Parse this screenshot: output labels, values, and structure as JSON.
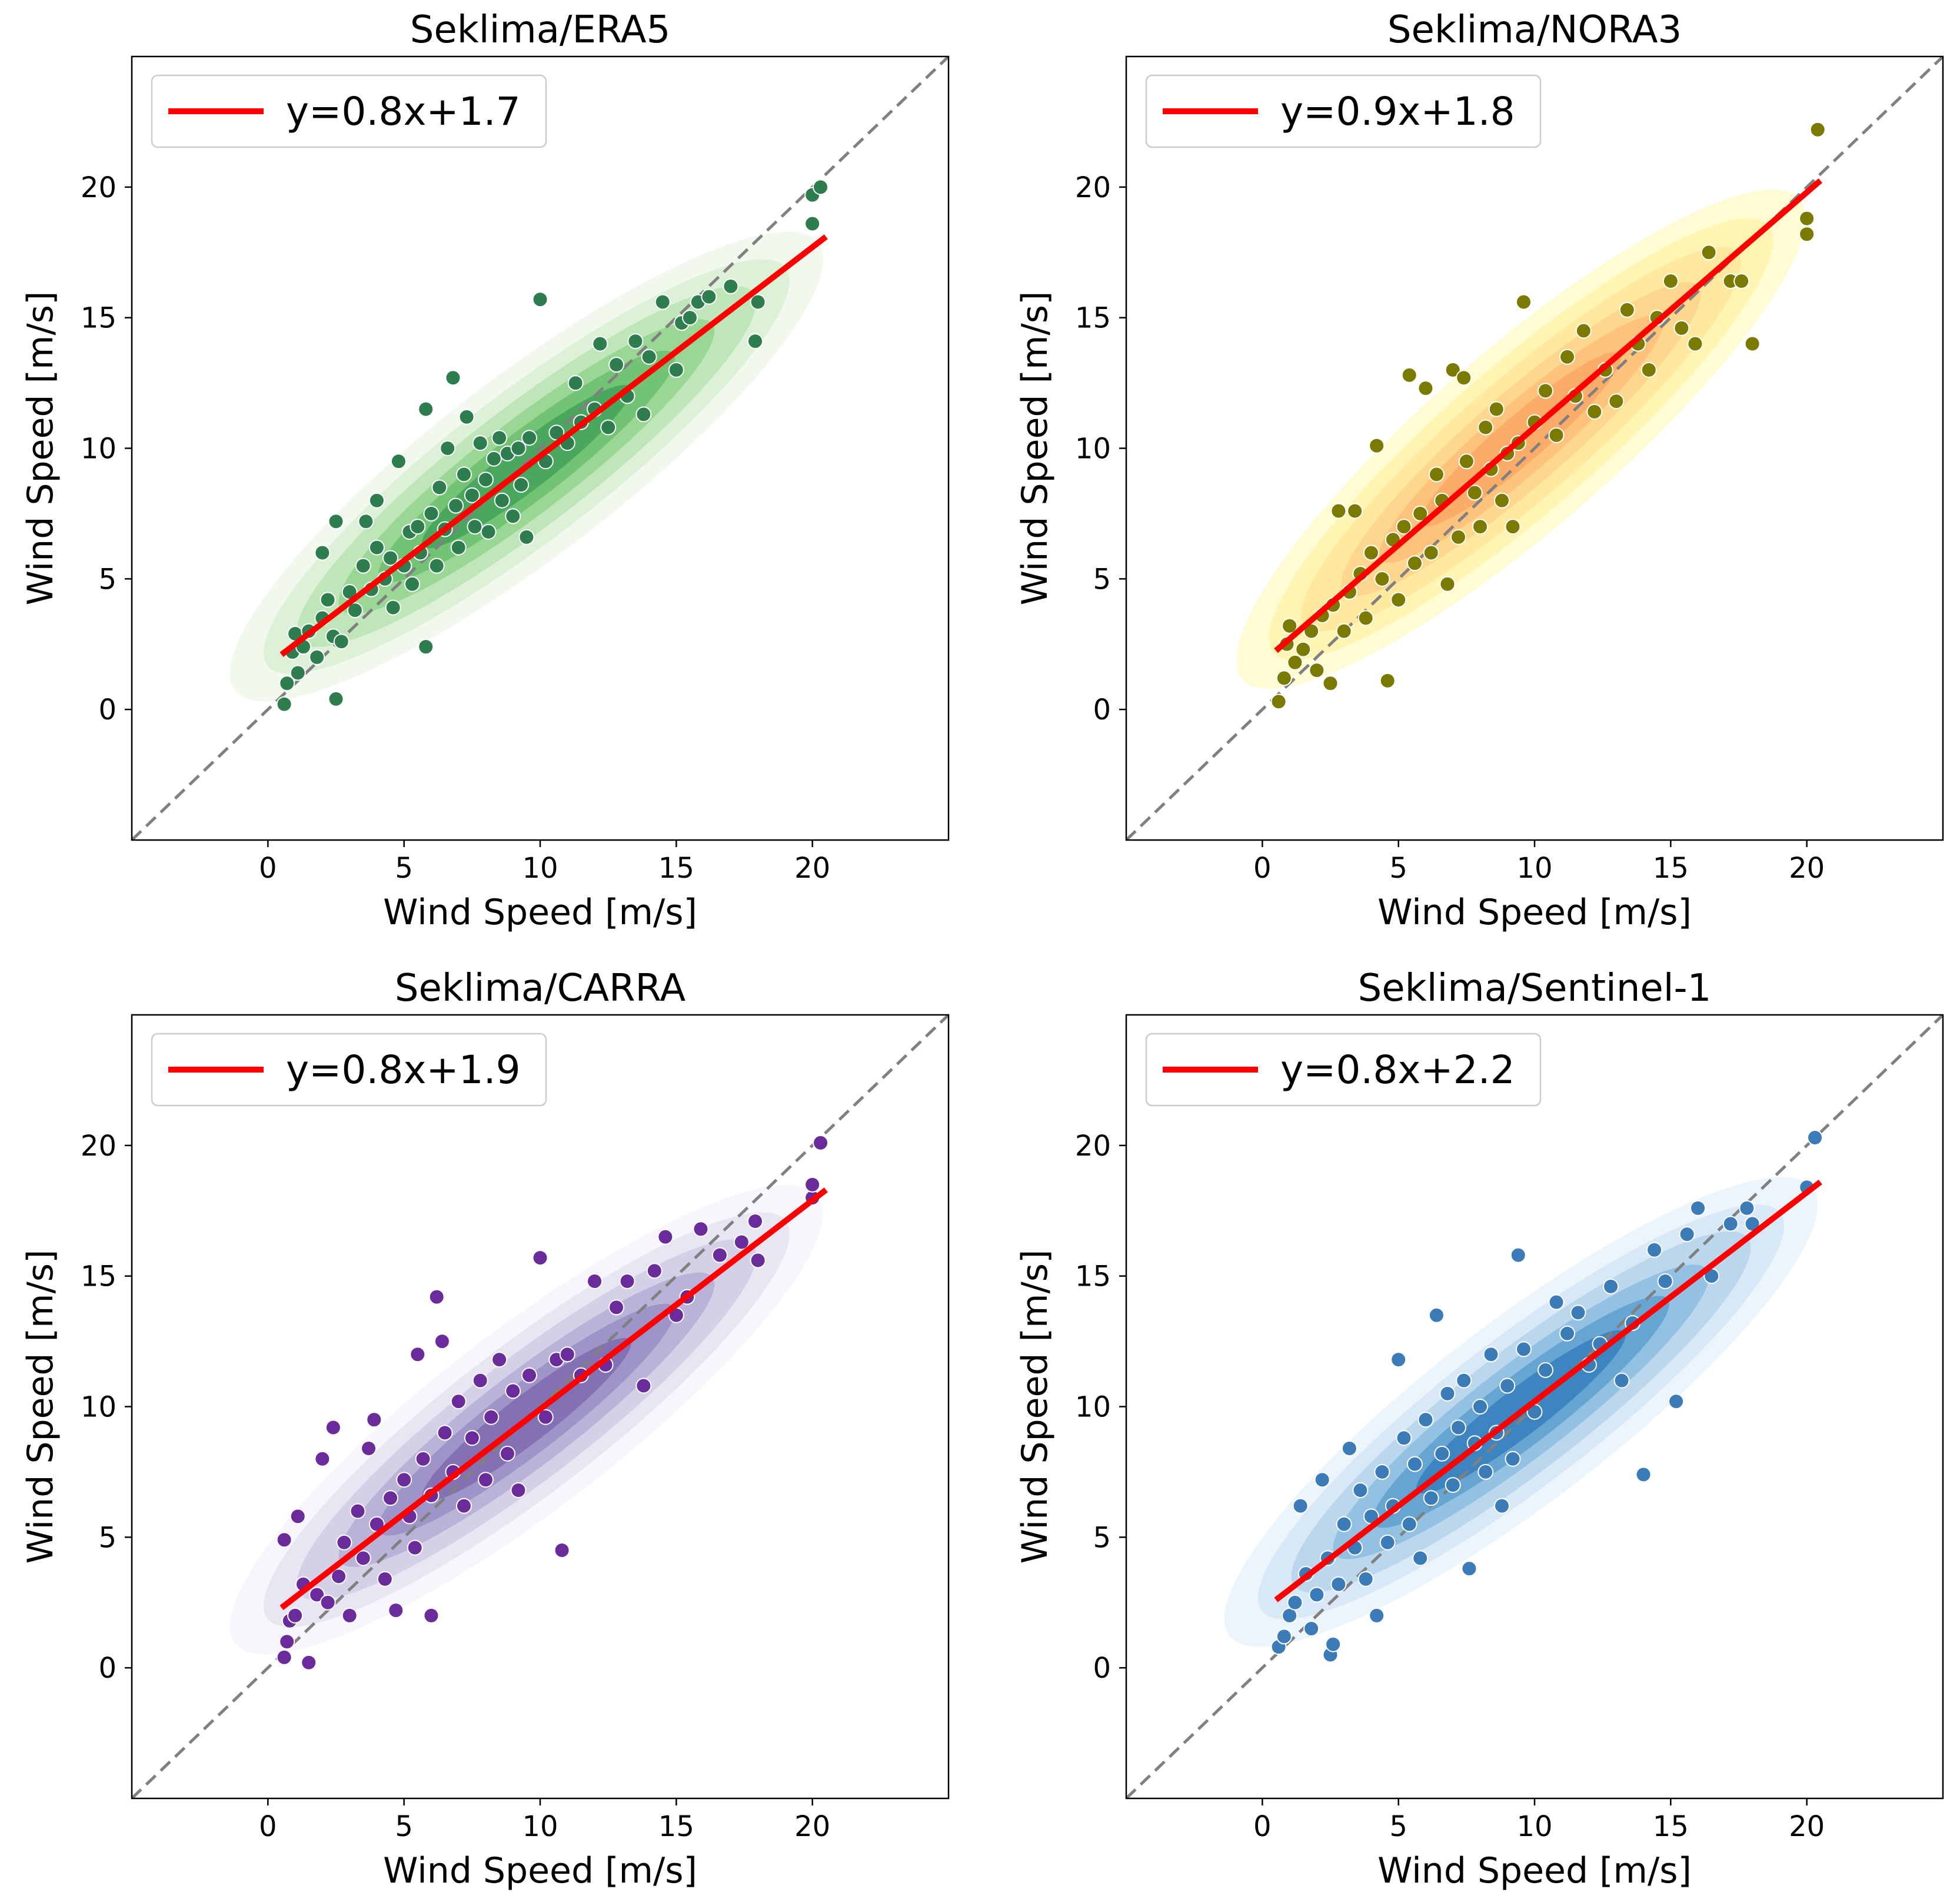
{
  "chart_data": [
    {
      "type": "scatter",
      "title": "Seklima/ERA5",
      "xlabel": "Wind Speed [m/s]",
      "ylabel": "Wind Speed [m/s]",
      "xlim": [
        -5,
        25
      ],
      "ylim": [
        -5,
        25
      ],
      "xticks": [
        0,
        5,
        10,
        15,
        20
      ],
      "yticks": [
        0,
        5,
        10,
        15,
        20
      ],
      "grid": false,
      "legend_position": "top-left",
      "point_color": "#2e7d4f",
      "kde_colormap": "Greens",
      "fit": {
        "label": "y=0.8x+1.7",
        "slope": 0.8,
        "intercept": 1.7,
        "x_range": [
          0.5,
          20.5
        ],
        "color": "#ff0000"
      },
      "identity_line": {
        "style": "dashed",
        "color": "#808080"
      },
      "points": [
        [
          0.6,
          0.2
        ],
        [
          0.7,
          1.0
        ],
        [
          0.9,
          2.2
        ],
        [
          1.0,
          2.9
        ],
        [
          1.1,
          1.4
        ],
        [
          1.3,
          2.4
        ],
        [
          1.5,
          3.0
        ],
        [
          1.8,
          2.0
        ],
        [
          2.0,
          3.5
        ],
        [
          2.2,
          4.2
        ],
        [
          2.4,
          2.8
        ],
        [
          2.5,
          0.4
        ],
        [
          2.7,
          2.6
        ],
        [
          2.0,
          6.0
        ],
        [
          2.5,
          7.2
        ],
        [
          3.0,
          4.5
        ],
        [
          3.2,
          3.8
        ],
        [
          3.5,
          5.5
        ],
        [
          3.6,
          7.2
        ],
        [
          3.8,
          4.6
        ],
        [
          4.0,
          6.2
        ],
        [
          4.0,
          8.0
        ],
        [
          4.3,
          5.0
        ],
        [
          4.5,
          5.8
        ],
        [
          4.6,
          3.9
        ],
        [
          4.8,
          9.5
        ],
        [
          5.0,
          5.5
        ],
        [
          5.2,
          6.8
        ],
        [
          5.3,
          4.8
        ],
        [
          5.5,
          7.0
        ],
        [
          5.6,
          6.0
        ],
        [
          5.8,
          11.5
        ],
        [
          5.8,
          2.4
        ],
        [
          6.0,
          7.5
        ],
        [
          6.2,
          5.5
        ],
        [
          6.3,
          8.5
        ],
        [
          6.5,
          6.9
        ],
        [
          6.6,
          10.0
        ],
        [
          6.8,
          12.7
        ],
        [
          6.9,
          7.8
        ],
        [
          7.0,
          6.2
        ],
        [
          7.2,
          9.0
        ],
        [
          7.3,
          11.2
        ],
        [
          7.5,
          8.2
        ],
        [
          7.6,
          7.0
        ],
        [
          7.8,
          10.2
        ],
        [
          8.0,
          8.8
        ],
        [
          8.1,
          6.8
        ],
        [
          8.3,
          9.6
        ],
        [
          8.5,
          10.4
        ],
        [
          8.6,
          8.0
        ],
        [
          8.8,
          9.8
        ],
        [
          9.0,
          7.4
        ],
        [
          9.2,
          10.0
        ],
        [
          9.3,
          8.6
        ],
        [
          9.5,
          6.6
        ],
        [
          9.6,
          10.4
        ],
        [
          10.0,
          15.7
        ],
        [
          10.2,
          9.5
        ],
        [
          10.6,
          10.6
        ],
        [
          11.0,
          10.2
        ],
        [
          11.3,
          12.5
        ],
        [
          11.5,
          11.0
        ],
        [
          12.0,
          11.5
        ],
        [
          12.2,
          14.0
        ],
        [
          12.5,
          10.8
        ],
        [
          12.8,
          13.2
        ],
        [
          13.2,
          12.0
        ],
        [
          13.5,
          14.1
        ],
        [
          13.8,
          11.3
        ],
        [
          14.0,
          13.5
        ],
        [
          14.5,
          15.6
        ],
        [
          15.0,
          13.0
        ],
        [
          15.2,
          14.8
        ],
        [
          15.5,
          15.0
        ],
        [
          15.8,
          15.6
        ],
        [
          16.2,
          15.8
        ],
        [
          17.0,
          16.2
        ],
        [
          17.9,
          14.1
        ],
        [
          18.0,
          15.6
        ],
        [
          20.0,
          18.6
        ],
        [
          20.0,
          19.7
        ],
        [
          20.3,
          20.0
        ]
      ]
    },
    {
      "type": "scatter",
      "title": "Seklima/NORA3",
      "xlabel": "Wind Speed [m/s]",
      "ylabel": "Wind Speed [m/s]",
      "xlim": [
        -5,
        25
      ],
      "ylim": [
        -5,
        25
      ],
      "xticks": [
        0,
        5,
        10,
        15,
        20
      ],
      "yticks": [
        0,
        5,
        10,
        15,
        20
      ],
      "grid": false,
      "legend_position": "top-left",
      "point_color": "#7a7a00",
      "kde_colormap": "YlOrRd",
      "fit": {
        "label": "y=0.9x+1.8",
        "slope": 0.9,
        "intercept": 1.8,
        "x_range": [
          0.5,
          20.5
        ],
        "color": "#ff0000"
      },
      "identity_line": {
        "style": "dashed",
        "color": "#808080"
      },
      "points": [
        [
          0.6,
          0.3
        ],
        [
          0.8,
          1.2
        ],
        [
          0.9,
          2.5
        ],
        [
          1.0,
          3.2
        ],
        [
          1.2,
          1.8
        ],
        [
          1.5,
          2.3
        ],
        [
          1.8,
          3.0
        ],
        [
          2.0,
          1.5
        ],
        [
          2.2,
          3.6
        ],
        [
          2.5,
          1.0
        ],
        [
          2.6,
          4.0
        ],
        [
          2.8,
          7.6
        ],
        [
          3.0,
          3.0
        ],
        [
          3.2,
          4.5
        ],
        [
          3.4,
          7.6
        ],
        [
          3.6,
          5.2
        ],
        [
          3.8,
          3.5
        ],
        [
          4.0,
          6.0
        ],
        [
          4.2,
          10.1
        ],
        [
          4.4,
          5.0
        ],
        [
          4.6,
          1.1
        ],
        [
          4.8,
          6.5
        ],
        [
          5.0,
          4.2
        ],
        [
          5.2,
          7.0
        ],
        [
          5.4,
          12.8
        ],
        [
          5.6,
          5.6
        ],
        [
          5.8,
          7.5
        ],
        [
          6.0,
          12.3
        ],
        [
          6.2,
          6.0
        ],
        [
          6.4,
          9.0
        ],
        [
          6.6,
          8.0
        ],
        [
          6.8,
          4.8
        ],
        [
          7.0,
          13.0
        ],
        [
          7.2,
          6.6
        ],
        [
          7.4,
          12.7
        ],
        [
          7.5,
          9.5
        ],
        [
          7.8,
          8.3
        ],
        [
          8.0,
          7.0
        ],
        [
          8.2,
          10.8
        ],
        [
          8.4,
          9.2
        ],
        [
          8.6,
          11.5
        ],
        [
          8.8,
          8.0
        ],
        [
          9.0,
          9.8
        ],
        [
          9.2,
          7.0
        ],
        [
          9.4,
          10.2
        ],
        [
          9.6,
          15.6
        ],
        [
          10.0,
          11.0
        ],
        [
          10.4,
          12.2
        ],
        [
          10.8,
          10.5
        ],
        [
          11.2,
          13.5
        ],
        [
          11.5,
          12.0
        ],
        [
          11.8,
          14.5
        ],
        [
          12.2,
          11.4
        ],
        [
          12.6,
          13.0
        ],
        [
          13.0,
          11.8
        ],
        [
          13.4,
          15.3
        ],
        [
          13.8,
          14.0
        ],
        [
          14.2,
          13.0
        ],
        [
          14.5,
          15.0
        ],
        [
          15.0,
          16.4
        ],
        [
          15.4,
          14.6
        ],
        [
          15.9,
          14.0
        ],
        [
          16.4,
          17.5
        ],
        [
          17.2,
          16.4
        ],
        [
          17.6,
          16.4
        ],
        [
          18.0,
          14.0
        ],
        [
          20.0,
          18.2
        ],
        [
          20.0,
          18.8
        ],
        [
          20.4,
          22.2
        ]
      ]
    },
    {
      "type": "scatter",
      "title": "Seklima/CARRA",
      "xlabel": "Wind Speed [m/s]",
      "ylabel": "Wind Speed [m/s]",
      "xlim": [
        -5,
        25
      ],
      "ylim": [
        -5,
        25
      ],
      "xticks": [
        0,
        5,
        10,
        15,
        20
      ],
      "yticks": [
        0,
        5,
        10,
        15,
        20
      ],
      "grid": false,
      "legend_position": "top-left",
      "point_color": "#6a2c9a",
      "kde_colormap": "Purples",
      "fit": {
        "label": "y=0.8x+1.9",
        "slope": 0.8,
        "intercept": 1.9,
        "x_range": [
          0.5,
          20.5
        ],
        "color": "#ff0000"
      },
      "identity_line": {
        "style": "dashed",
        "color": "#808080"
      },
      "points": [
        [
          0.6,
          0.4
        ],
        [
          0.7,
          1.0
        ],
        [
          0.8,
          1.8
        ],
        [
          0.6,
          4.9
        ],
        [
          1.0,
          2.0
        ],
        [
          1.1,
          5.8
        ],
        [
          1.3,
          3.2
        ],
        [
          1.5,
          0.2
        ],
        [
          1.8,
          2.8
        ],
        [
          2.0,
          8.0
        ],
        [
          2.2,
          2.5
        ],
        [
          2.4,
          9.2
        ],
        [
          2.6,
          3.5
        ],
        [
          2.8,
          4.8
        ],
        [
          3.0,
          2.0
        ],
        [
          3.3,
          6.0
        ],
        [
          3.5,
          4.2
        ],
        [
          3.7,
          8.4
        ],
        [
          3.9,
          9.5
        ],
        [
          4.0,
          5.5
        ],
        [
          4.3,
          3.4
        ],
        [
          4.5,
          6.5
        ],
        [
          4.7,
          2.2
        ],
        [
          5.0,
          7.2
        ],
        [
          5.2,
          5.8
        ],
        [
          5.4,
          4.6
        ],
        [
          5.5,
          12.0
        ],
        [
          5.7,
          8.0
        ],
        [
          6.0,
          6.6
        ],
        [
          6.0,
          2.0
        ],
        [
          6.2,
          14.2
        ],
        [
          6.4,
          12.5
        ],
        [
          6.5,
          9.0
        ],
        [
          6.8,
          7.5
        ],
        [
          7.0,
          10.2
        ],
        [
          7.2,
          6.2
        ],
        [
          7.5,
          8.8
        ],
        [
          7.8,
          11.0
        ],
        [
          8.0,
          7.2
        ],
        [
          8.2,
          9.6
        ],
        [
          8.5,
          11.8
        ],
        [
          8.8,
          8.2
        ],
        [
          9.0,
          10.6
        ],
        [
          9.2,
          6.8
        ],
        [
          9.6,
          11.2
        ],
        [
          10.0,
          15.7
        ],
        [
          10.2,
          9.6
        ],
        [
          10.6,
          11.8
        ],
        [
          10.8,
          4.5
        ],
        [
          11.0,
          12.0
        ],
        [
          11.5,
          11.2
        ],
        [
          12.0,
          14.8
        ],
        [
          12.4,
          11.6
        ],
        [
          12.8,
          13.8
        ],
        [
          13.2,
          14.8
        ],
        [
          13.8,
          10.8
        ],
        [
          14.2,
          15.2
        ],
        [
          14.6,
          16.5
        ],
        [
          15.0,
          13.5
        ],
        [
          15.4,
          14.2
        ],
        [
          15.9,
          16.8
        ],
        [
          16.6,
          15.8
        ],
        [
          17.4,
          16.3
        ],
        [
          17.9,
          17.1
        ],
        [
          18.0,
          15.6
        ],
        [
          20.0,
          18.0
        ],
        [
          20.0,
          18.5
        ],
        [
          20.3,
          20.1
        ]
      ]
    },
    {
      "type": "scatter",
      "title": "Seklima/Sentinel-1",
      "xlabel": "Wind Speed [m/s]",
      "ylabel": "Wind Speed [m/s]",
      "xlim": [
        -5,
        25
      ],
      "ylim": [
        -5,
        25
      ],
      "xticks": [
        0,
        5,
        10,
        15,
        20
      ],
      "yticks": [
        0,
        5,
        10,
        15,
        20
      ],
      "grid": false,
      "legend_position": "top-left",
      "point_color": "#3a7bb8",
      "kde_colormap": "Blues",
      "fit": {
        "label": "y=0.8x+2.2",
        "slope": 0.8,
        "intercept": 2.2,
        "x_range": [
          0.5,
          20.5
        ],
        "color": "#ff0000"
      },
      "identity_line": {
        "style": "dashed",
        "color": "#808080"
      },
      "points": [
        [
          0.6,
          0.8
        ],
        [
          0.8,
          1.2
        ],
        [
          1.0,
          2.0
        ],
        [
          1.2,
          2.5
        ],
        [
          1.4,
          6.2
        ],
        [
          1.6,
          3.6
        ],
        [
          1.8,
          1.5
        ],
        [
          2.0,
          2.8
        ],
        [
          2.2,
          7.2
        ],
        [
          2.4,
          4.2
        ],
        [
          2.5,
          0.5
        ],
        [
          2.6,
          0.9
        ],
        [
          2.8,
          3.2
        ],
        [
          3.0,
          5.5
        ],
        [
          3.2,
          8.4
        ],
        [
          3.4,
          4.6
        ],
        [
          3.6,
          6.8
        ],
        [
          3.8,
          3.4
        ],
        [
          4.0,
          5.8
        ],
        [
          4.2,
          2.0
        ],
        [
          4.4,
          7.5
        ],
        [
          4.6,
          4.8
        ],
        [
          4.8,
          6.2
        ],
        [
          5.0,
          11.8
        ],
        [
          5.2,
          8.8
        ],
        [
          5.4,
          5.5
        ],
        [
          5.6,
          7.8
        ],
        [
          5.8,
          4.2
        ],
        [
          6.0,
          9.5
        ],
        [
          6.2,
          6.5
        ],
        [
          6.4,
          13.5
        ],
        [
          6.6,
          8.2
        ],
        [
          6.8,
          10.5
        ],
        [
          7.0,
          7.0
        ],
        [
          7.2,
          9.2
        ],
        [
          7.4,
          11.0
        ],
        [
          7.6,
          3.8
        ],
        [
          7.8,
          8.6
        ],
        [
          8.0,
          10.0
        ],
        [
          8.2,
          7.5
        ],
        [
          8.4,
          12.0
        ],
        [
          8.6,
          9.0
        ],
        [
          8.8,
          6.2
        ],
        [
          9.0,
          10.8
        ],
        [
          9.2,
          8.0
        ],
        [
          9.4,
          15.8
        ],
        [
          9.6,
          12.2
        ],
        [
          10.0,
          9.8
        ],
        [
          10.4,
          11.4
        ],
        [
          10.8,
          14.0
        ],
        [
          11.2,
          12.8
        ],
        [
          11.6,
          13.6
        ],
        [
          12.0,
          11.6
        ],
        [
          12.4,
          12.4
        ],
        [
          12.8,
          14.6
        ],
        [
          13.2,
          11.0
        ],
        [
          13.6,
          13.2
        ],
        [
          14.0,
          7.4
        ],
        [
          14.4,
          16.0
        ],
        [
          14.8,
          14.8
        ],
        [
          15.2,
          10.2
        ],
        [
          15.6,
          16.6
        ],
        [
          16.0,
          17.6
        ],
        [
          16.5,
          15.0
        ],
        [
          17.2,
          17.0
        ],
        [
          17.8,
          17.6
        ],
        [
          18.0,
          17.0
        ],
        [
          20.0,
          18.4
        ],
        [
          20.3,
          20.3
        ]
      ]
    }
  ]
}
